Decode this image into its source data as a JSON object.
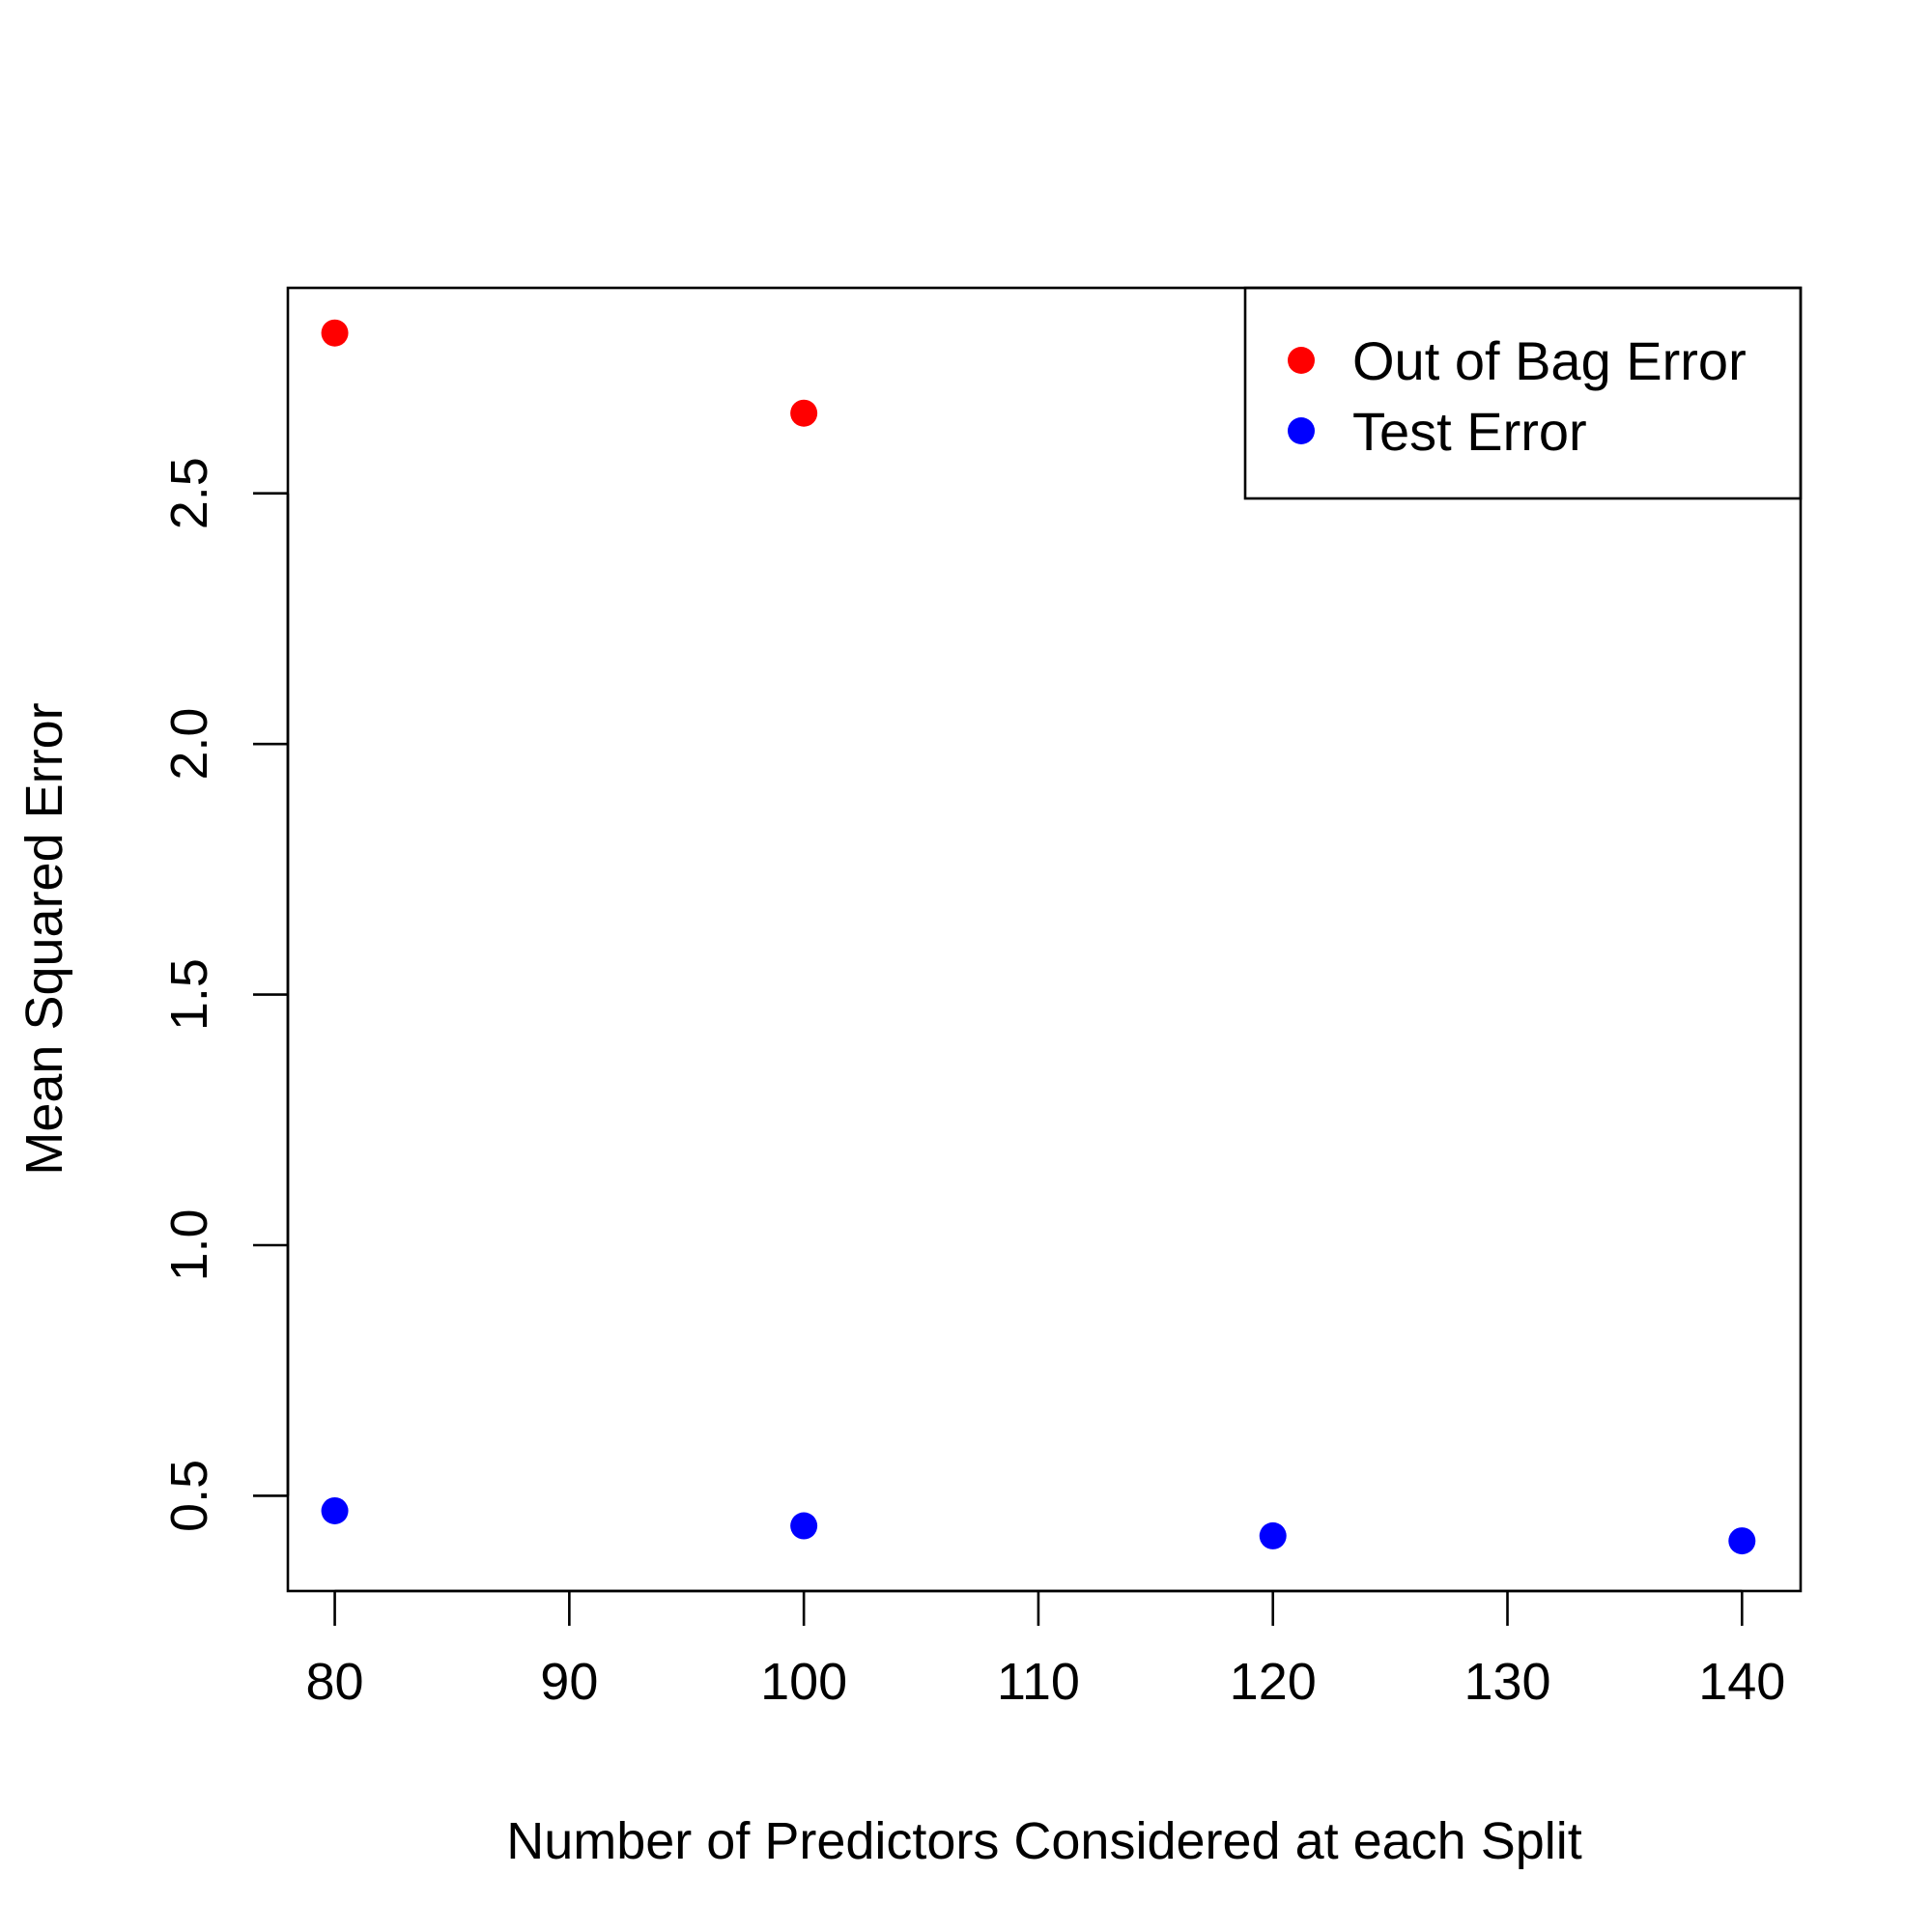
{
  "chart_data": {
    "type": "scatter",
    "title": "",
    "xlabel": "Number of Predictors Considered at each Split",
    "ylabel": "Mean Squared Error",
    "xlim": [
      78,
      142.5
    ],
    "ylim": [
      0.31,
      2.91
    ],
    "x_ticks": [
      80,
      90,
      100,
      110,
      120,
      130,
      140
    ],
    "y_ticks": [
      0.5,
      1.0,
      1.5,
      2.0,
      2.5
    ],
    "x_tick_labels": [
      "80",
      "90",
      "100",
      "110",
      "120",
      "130",
      "140"
    ],
    "y_tick_labels": [
      "0.5",
      "1.0",
      "1.5",
      "2.0",
      "2.5"
    ],
    "grid": false,
    "legend_position": "top-right",
    "series": [
      {
        "name": "Out of Bag Error",
        "color": "#ff0000",
        "points": [
          {
            "x": 80,
            "y": 2.82
          },
          {
            "x": 100,
            "y": 2.66
          }
        ]
      },
      {
        "name": "Test Error",
        "color": "#0000ff",
        "points": [
          {
            "x": 80,
            "y": 0.47
          },
          {
            "x": 100,
            "y": 0.44
          },
          {
            "x": 120,
            "y": 0.42
          },
          {
            "x": 140,
            "y": 0.41
          }
        ]
      }
    ]
  }
}
